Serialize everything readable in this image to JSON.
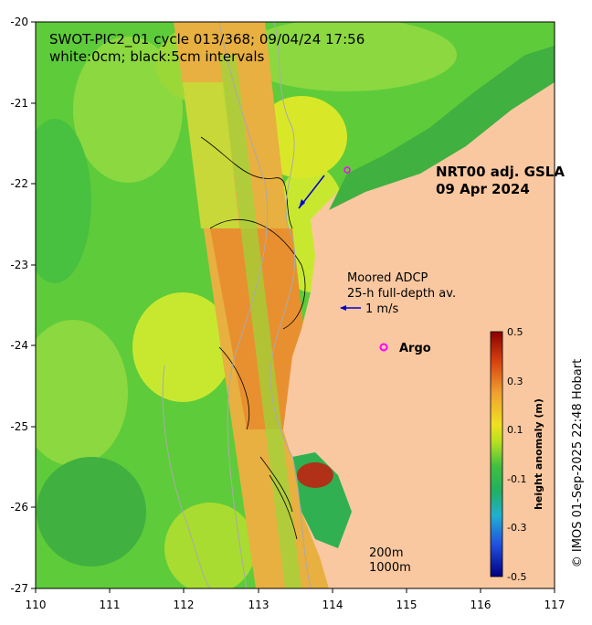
{
  "map": {
    "title_line1": "SWOT-PIC2_01 cycle 013/368; 09/04/24 17:56",
    "title_line2": "white:0cm; black:5cm intervals",
    "product_line1": "NRT00 adj. GSLA",
    "product_line2": "09 Apr 2024",
    "adcp_line1": "Moored ADCP",
    "adcp_line2": "25-h full-depth av.",
    "adcp_scale_label": "1 m/s",
    "argo_label": "Argo",
    "depth_label_1": "200m",
    "depth_label_2": "1000m",
    "copyright": "© IMOS 01-Sep-2025 22:48 Hobart",
    "x_ticks": [
      "110",
      "111",
      "112",
      "113",
      "114",
      "115",
      "116",
      "117"
    ],
    "y_ticks": [
      "-20",
      "-21",
      "-22",
      "-23",
      "-24",
      "-25",
      "-26",
      "-27"
    ],
    "lon_range": [
      110,
      117
    ],
    "lat_range": [
      -27,
      -20
    ],
    "colors": {
      "land": "#f9c8a0",
      "ocean_base": "#5ecb3a",
      "swath": "#e8a040",
      "contour_black": "#000000",
      "isobath": "#aaaaaa",
      "argo": "#ff00ff",
      "adcp_arrow": "#0000cc"
    }
  },
  "colorbar": {
    "label": "height anomaly (m)",
    "ticks": [
      "0.5",
      "0.3",
      "0.1",
      "-0.1",
      "-0.3",
      "-0.5"
    ],
    "range": [
      -0.5,
      0.5
    ]
  }
}
